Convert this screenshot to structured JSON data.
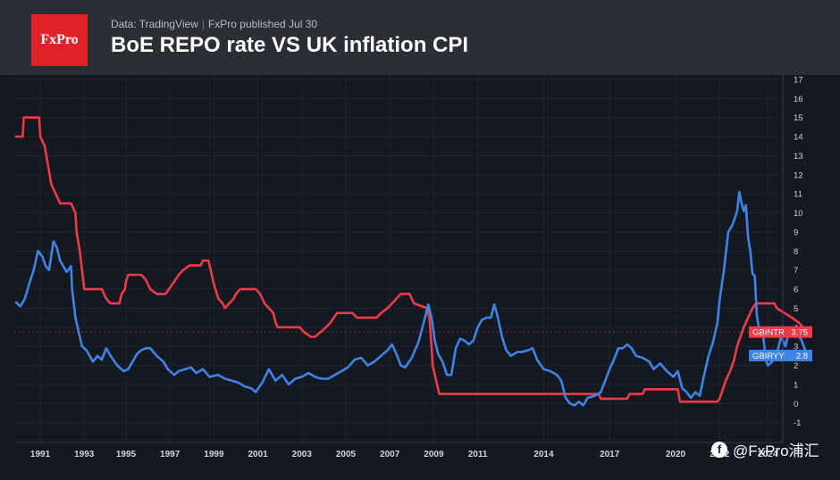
{
  "header": {
    "logo_text": "FxPro",
    "source_label": "Data: TradingView",
    "publisher": "FxPro published Jul 30",
    "title": "BoE REPO rate VS UK inflation CPI"
  },
  "watermark": {
    "icon": "facebook-icon",
    "text": "@FxPro浦汇"
  },
  "chart_data": {
    "type": "line",
    "title": "BoE REPO rate VS UK inflation CPI",
    "xlabel": "",
    "ylabel": "",
    "xlim": [
      1990.0,
      2024.7
    ],
    "ylim": [
      -2,
      17
    ],
    "y_ticks": [
      -1,
      0,
      1,
      2,
      3,
      4,
      5,
      6,
      7,
      8,
      9,
      10,
      11,
      12,
      13,
      14,
      15,
      16,
      17
    ],
    "x_ticks": [
      {
        "value": 1991.1,
        "label": "1991"
      },
      {
        "value": 1993.1,
        "label": "1993"
      },
      {
        "value": 1995.0,
        "label": "1995"
      },
      {
        "value": 1997.0,
        "label": "1997"
      },
      {
        "value": 1999.0,
        "label": "1999"
      },
      {
        "value": 2001.0,
        "label": "2001"
      },
      {
        "value": 2003.0,
        "label": "2003"
      },
      {
        "value": 2005.0,
        "label": "2005"
      },
      {
        "value": 2007.0,
        "label": "2007"
      },
      {
        "value": 2009.0,
        "label": "2009"
      },
      {
        "value": 2011.0,
        "label": "2011"
      },
      {
        "value": 2014.0,
        "label": "2014"
      },
      {
        "value": 2017.0,
        "label": "2017"
      },
      {
        "value": 2020.0,
        "label": "2020"
      },
      {
        "value": 2022.0,
        "label": "2022"
      },
      {
        "value": 2024.2,
        "label": "2024"
      }
    ],
    "grid": true,
    "legend": "right-axis-labels",
    "series": [
      {
        "name": "GBINTR",
        "color": "#f03a47",
        "last_value": "3.75",
        "points": [
          [
            1990.0,
            14
          ],
          [
            1990.3,
            14
          ],
          [
            1990.35,
            15
          ],
          [
            1991.05,
            15
          ],
          [
            1991.1,
            14
          ],
          [
            1991.3,
            13.5
          ],
          [
            1991.45,
            12.5
          ],
          [
            1991.6,
            11.5
          ],
          [
            1991.8,
            11
          ],
          [
            1992.0,
            10.5
          ],
          [
            1992.5,
            10.5
          ],
          [
            1992.7,
            10
          ],
          [
            1992.75,
            9
          ],
          [
            1992.9,
            8
          ],
          [
            1993.0,
            7
          ],
          [
            1993.1,
            6
          ],
          [
            1993.9,
            6
          ],
          [
            1994.1,
            5.5
          ],
          [
            1994.3,
            5.25
          ],
          [
            1994.7,
            5.25
          ],
          [
            1994.8,
            5.75
          ],
          [
            1994.95,
            6
          ],
          [
            1995.0,
            6.4
          ],
          [
            1995.1,
            6.75
          ],
          [
            1995.7,
            6.75
          ],
          [
            1995.9,
            6.5
          ],
          [
            1996.1,
            6
          ],
          [
            1996.4,
            5.75
          ],
          [
            1996.8,
            5.75
          ],
          [
            1996.95,
            6
          ],
          [
            1997.2,
            6.4
          ],
          [
            1997.4,
            6.75
          ],
          [
            1997.6,
            7
          ],
          [
            1997.9,
            7.25
          ],
          [
            1998.4,
            7.25
          ],
          [
            1998.5,
            7.5
          ],
          [
            1998.75,
            7.5
          ],
          [
            1998.85,
            7
          ],
          [
            1999.0,
            6.25
          ],
          [
            1999.2,
            5.5
          ],
          [
            1999.4,
            5.25
          ],
          [
            1999.5,
            5
          ],
          [
            1999.7,
            5.25
          ],
          [
            1999.9,
            5.5
          ],
          [
            2000.0,
            5.75
          ],
          [
            2000.2,
            6
          ],
          [
            2000.9,
            6
          ],
          [
            2001.1,
            5.75
          ],
          [
            2001.3,
            5.25
          ],
          [
            2001.5,
            5
          ],
          [
            2001.7,
            4.75
          ],
          [
            2001.8,
            4.25
          ],
          [
            2001.9,
            4
          ],
          [
            2002.9,
            4
          ],
          [
            2003.1,
            3.75
          ],
          [
            2003.4,
            3.5
          ],
          [
            2003.6,
            3.5
          ],
          [
            2003.85,
            3.75
          ],
          [
            2004.1,
            4
          ],
          [
            2004.3,
            4.25
          ],
          [
            2004.45,
            4.5
          ],
          [
            2004.6,
            4.75
          ],
          [
            2005.3,
            4.75
          ],
          [
            2005.5,
            4.5
          ],
          [
            2006.4,
            4.5
          ],
          [
            2006.6,
            4.75
          ],
          [
            2006.9,
            5
          ],
          [
            2007.1,
            5.25
          ],
          [
            2007.3,
            5.5
          ],
          [
            2007.5,
            5.75
          ],
          [
            2007.9,
            5.75
          ],
          [
            2008.0,
            5.5
          ],
          [
            2008.1,
            5.25
          ],
          [
            2008.7,
            5
          ],
          [
            2008.8,
            4.5
          ],
          [
            2008.9,
            3
          ],
          [
            2008.95,
            2
          ],
          [
            2009.05,
            1.5
          ],
          [
            2009.15,
            1
          ],
          [
            2009.25,
            0.5
          ],
          [
            2016.5,
            0.5
          ],
          [
            2016.6,
            0.25
          ],
          [
            2017.8,
            0.25
          ],
          [
            2017.9,
            0.5
          ],
          [
            2018.5,
            0.5
          ],
          [
            2018.6,
            0.75
          ],
          [
            2020.1,
            0.75
          ],
          [
            2020.2,
            0.1
          ],
          [
            2021.9,
            0.1
          ],
          [
            2022.0,
            0.25
          ],
          [
            2022.15,
            0.75
          ],
          [
            2022.3,
            1.25
          ],
          [
            2022.5,
            1.75
          ],
          [
            2022.65,
            2.25
          ],
          [
            2022.8,
            3
          ],
          [
            2022.95,
            3.5
          ],
          [
            2023.1,
            4
          ],
          [
            2023.3,
            4.5
          ],
          [
            2023.5,
            5
          ],
          [
            2023.65,
            5.25
          ],
          [
            2024.5,
            5.25
          ],
          [
            2024.6,
            5
          ],
          [
            2024.95,
            4.75
          ],
          [
            2025.3,
            4.5
          ],
          [
            2025.6,
            4.25
          ],
          [
            2025.8,
            4
          ],
          [
            2026.05,
            3.75
          ]
        ]
      },
      {
        "name": "GBIRYY",
        "color": "#3f84e5",
        "last_value": "2.8",
        "points": [
          [
            1990.0,
            5.3
          ],
          [
            1990.2,
            5.1
          ],
          [
            1990.4,
            5.5
          ],
          [
            1990.6,
            6.3
          ],
          [
            1990.8,
            7
          ],
          [
            1991.0,
            8
          ],
          [
            1991.2,
            7.7
          ],
          [
            1991.35,
            7.2
          ],
          [
            1991.5,
            7
          ],
          [
            1991.7,
            8.5
          ],
          [
            1991.85,
            8.2
          ],
          [
            1992.0,
            7.5
          ],
          [
            1992.15,
            7.2
          ],
          [
            1992.3,
            6.9
          ],
          [
            1992.5,
            7.2
          ],
          [
            1992.55,
            6
          ],
          [
            1992.7,
            4.5
          ],
          [
            1992.9,
            3.5
          ],
          [
            1993.0,
            3
          ],
          [
            1993.2,
            2.8
          ],
          [
            1993.5,
            2.2
          ],
          [
            1993.7,
            2.5
          ],
          [
            1993.9,
            2.3
          ],
          [
            1994.1,
            2.9
          ],
          [
            1994.3,
            2.5
          ],
          [
            1994.6,
            2
          ],
          [
            1994.9,
            1.7
          ],
          [
            1995.1,
            1.8
          ],
          [
            1995.3,
            2.2
          ],
          [
            1995.5,
            2.6
          ],
          [
            1995.7,
            2.8
          ],
          [
            1995.9,
            2.9
          ],
          [
            1996.1,
            2.9
          ],
          [
            1996.4,
            2.5
          ],
          [
            1996.7,
            2.2
          ],
          [
            1996.9,
            1.8
          ],
          [
            1997.2,
            1.5
          ],
          [
            1997.4,
            1.7
          ],
          [
            1997.7,
            1.8
          ],
          [
            1997.95,
            1.9
          ],
          [
            1998.2,
            1.6
          ],
          [
            1998.5,
            1.8
          ],
          [
            1998.8,
            1.4
          ],
          [
            1999.2,
            1.5
          ],
          [
            1999.5,
            1.3
          ],
          [
            1999.8,
            1.2
          ],
          [
            2000.1,
            1.1
          ],
          [
            2000.4,
            0.9
          ],
          [
            2000.7,
            0.8
          ],
          [
            2000.9,
            0.6
          ],
          [
            2001.2,
            1.1
          ],
          [
            2001.5,
            1.8
          ],
          [
            2001.8,
            1.2
          ],
          [
            2002.1,
            1.5
          ],
          [
            2002.4,
            1
          ],
          [
            2002.7,
            1.3
          ],
          [
            2003.0,
            1.4
          ],
          [
            2003.3,
            1.6
          ],
          [
            2003.6,
            1.4
          ],
          [
            2003.9,
            1.3
          ],
          [
            2004.2,
            1.3
          ],
          [
            2004.5,
            1.5
          ],
          [
            2004.8,
            1.7
          ],
          [
            2005.1,
            1.9
          ],
          [
            2005.4,
            2.3
          ],
          [
            2005.7,
            2.4
          ],
          [
            2006.0,
            2
          ],
          [
            2006.3,
            2.2
          ],
          [
            2006.6,
            2.5
          ],
          [
            2006.9,
            2.8
          ],
          [
            2007.1,
            3.1
          ],
          [
            2007.3,
            2.6
          ],
          [
            2007.5,
            2.0
          ],
          [
            2007.7,
            1.9
          ],
          [
            2008.0,
            2.4
          ],
          [
            2008.3,
            3.2
          ],
          [
            2008.6,
            4.5
          ],
          [
            2008.75,
            5.2
          ],
          [
            2008.9,
            4.5
          ],
          [
            2009.05,
            3.3
          ],
          [
            2009.2,
            2.6
          ],
          [
            2009.4,
            2.2
          ],
          [
            2009.6,
            1.5
          ],
          [
            2009.8,
            1.5
          ],
          [
            2010.0,
            2.9
          ],
          [
            2010.2,
            3.4
          ],
          [
            2010.4,
            3.3
          ],
          [
            2010.6,
            3.1
          ],
          [
            2010.8,
            3.3
          ],
          [
            2011.0,
            4
          ],
          [
            2011.2,
            4.4
          ],
          [
            2011.4,
            4.5
          ],
          [
            2011.6,
            4.5
          ],
          [
            2011.75,
            5.2
          ],
          [
            2011.9,
            4.6
          ],
          [
            2012.1,
            3.5
          ],
          [
            2012.3,
            2.8
          ],
          [
            2012.5,
            2.5
          ],
          [
            2012.8,
            2.7
          ],
          [
            2013.0,
            2.7
          ],
          [
            2013.3,
            2.8
          ],
          [
            2013.5,
            2.9
          ],
          [
            2013.7,
            2.3
          ],
          [
            2014.0,
            1.8
          ],
          [
            2014.3,
            1.7
          ],
          [
            2014.6,
            1.5
          ],
          [
            2014.8,
            1.2
          ],
          [
            2015.0,
            0.3
          ],
          [
            2015.2,
            0.0
          ],
          [
            2015.4,
            -0.1
          ],
          [
            2015.6,
            0.1
          ],
          [
            2015.8,
            -0.1
          ],
          [
            2016.0,
            0.3
          ],
          [
            2016.3,
            0.4
          ],
          [
            2016.6,
            0.6
          ],
          [
            2016.8,
            1.2
          ],
          [
            2017.0,
            1.8
          ],
          [
            2017.2,
            2.3
          ],
          [
            2017.4,
            2.9
          ],
          [
            2017.6,
            2.9
          ],
          [
            2017.8,
            3.1
          ],
          [
            2018.0,
            2.9
          ],
          [
            2018.2,
            2.5
          ],
          [
            2018.5,
            2.4
          ],
          [
            2018.8,
            2.2
          ],
          [
            2019.0,
            1.8
          ],
          [
            2019.3,
            2.1
          ],
          [
            2019.6,
            1.7
          ],
          [
            2019.9,
            1.4
          ],
          [
            2020.1,
            1.7
          ],
          [
            2020.3,
            0.8
          ],
          [
            2020.5,
            0.6
          ],
          [
            2020.7,
            0.3
          ],
          [
            2020.9,
            0.6
          ],
          [
            2021.1,
            0.4
          ],
          [
            2021.3,
            1.5
          ],
          [
            2021.5,
            2.5
          ],
          [
            2021.7,
            3.2
          ],
          [
            2021.9,
            4.2
          ],
          [
            2022.0,
            5.4
          ],
          [
            2022.2,
            7
          ],
          [
            2022.4,
            9
          ],
          [
            2022.6,
            9.4
          ],
          [
            2022.8,
            10.1
          ],
          [
            2022.9,
            11.1
          ],
          [
            2023.0,
            10.5
          ],
          [
            2023.1,
            10.1
          ],
          [
            2023.2,
            10.4
          ],
          [
            2023.3,
            8.7
          ],
          [
            2023.4,
            8
          ],
          [
            2023.5,
            6.8
          ],
          [
            2023.6,
            6.7
          ],
          [
            2023.7,
            4.6
          ],
          [
            2023.8,
            3.9
          ],
          [
            2023.9,
            4
          ],
          [
            2024.0,
            3.4
          ],
          [
            2024.1,
            2.3
          ],
          [
            2024.2,
            2.0
          ],
          [
            2024.4,
            2.2
          ],
          [
            2024.6,
            2.6
          ],
          [
            2024.8,
            3.5
          ],
          [
            2025.0,
            3.0
          ],
          [
            2025.1,
            3.5
          ],
          [
            2025.3,
            3.8
          ],
          [
            2025.5,
            3.6
          ],
          [
            2025.7,
            3.4
          ],
          [
            2025.9,
            2.8
          ]
        ]
      }
    ]
  }
}
